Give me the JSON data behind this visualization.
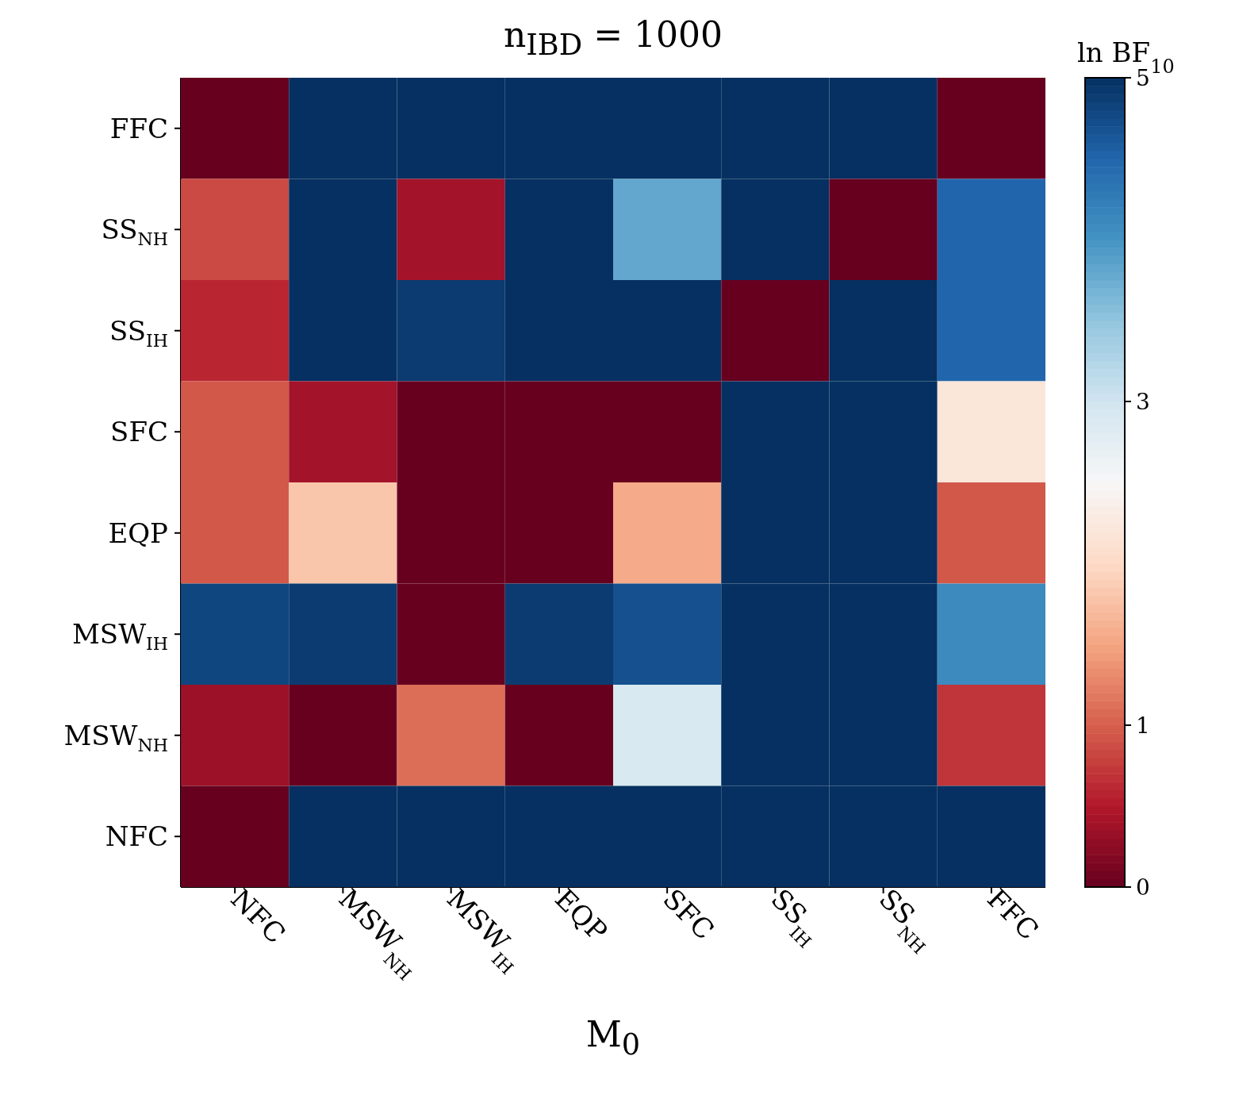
{
  "chart_data": {
    "type": "heatmap",
    "title": "n$_{IBD}$ = 1000",
    "xlabel": "M$_{0}$",
    "clabel": "ln BF$_{10}$",
    "categories": [
      "NFC",
      "MSW$_{NH}$",
      "MSW$_{IH}$",
      "EQP",
      "SFC",
      "SS$_{IH}$",
      "SS$_{NH}$",
      "FFC"
    ],
    "y_categories": [
      "FFC",
      "SS$_{NH}$",
      "SS$_{IH}$",
      "SFC",
      "EQP",
      "MSW$_{IH}$",
      "MSW$_{NH}$",
      "NFC"
    ],
    "cells": [
      [
        0,
        5,
        5,
        5,
        5,
        5,
        5,
        0
      ],
      [
        0.85,
        5,
        0.4,
        5,
        3.8,
        5,
        0,
        4.5
      ],
      [
        0.6,
        5,
        4.9,
        5,
        5,
        0,
        5,
        4.5
      ],
      [
        0.95,
        0.4,
        0,
        0,
        0,
        5,
        5,
        2.2
      ],
      [
        0.95,
        1.8,
        0,
        0,
        1.55,
        5,
        5,
        0.95
      ],
      [
        4.8,
        4.9,
        0,
        4.9,
        4.7,
        5,
        5,
        4.1
      ],
      [
        0.35,
        0,
        1.1,
        0,
        2.9,
        5,
        5,
        0.7
      ],
      [
        0,
        5,
        5,
        5,
        5,
        5,
        5,
        5
      ]
    ],
    "clim": [
      0,
      5
    ],
    "cticks": [
      0,
      1,
      3,
      5
    ]
  }
}
